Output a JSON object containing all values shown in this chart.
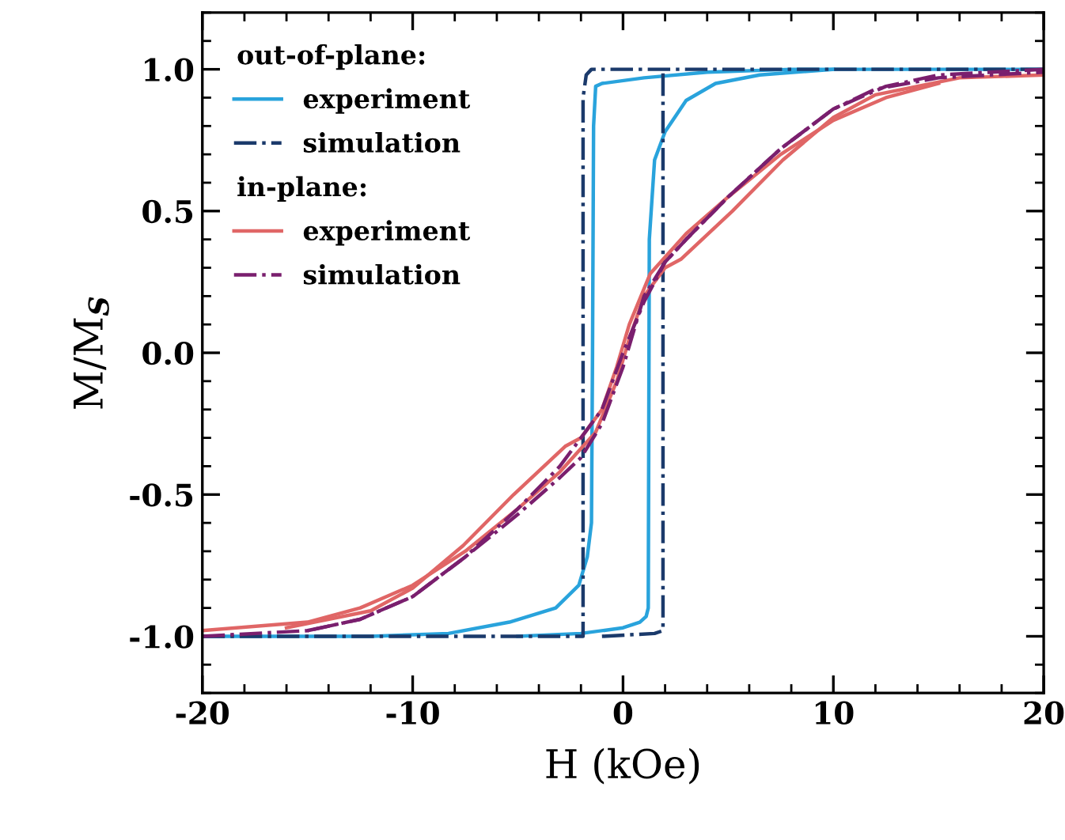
{
  "chart_data": {
    "type": "line",
    "xlabel": "H (kOe)",
    "ylabel": "M/M$_{S}$",
    "xlim": [
      -20,
      20
    ],
    "xticks": [
      -20,
      -10,
      0,
      10,
      20
    ],
    "ylim": [
      -1.2,
      1.2
    ],
    "yticks": [
      {
        "value": -1.0,
        "label": "-1.0"
      },
      {
        "value": -0.5,
        "label": "-0.5"
      },
      {
        "value": 0.0,
        "label": "0.0"
      },
      {
        "value": 0.5,
        "label": "0.5"
      },
      {
        "value": 1.0,
        "label": "1.0"
      }
    ],
    "annotations": [
      "out-of-plane:",
      "in-plane:"
    ],
    "legend": "top left",
    "grid": false,
    "marker": "none",
    "series": [
      {
        "name": "experiment",
        "color": "#29a3dc",
        "line_style": "solid",
        "x": [
          -20,
          -12,
          -8.3,
          -5.4,
          -3.2,
          -2.1,
          -1.7,
          -1.5,
          -1.45,
          -1.4,
          -1.3,
          -1.0,
          1,
          4,
          8,
          20
        ],
        "values": [
          -1.0,
          -1.0,
          -0.99,
          -0.95,
          -0.9,
          -0.82,
          -0.72,
          -0.6,
          0.0,
          0.8,
          0.94,
          0.95,
          0.97,
          0.99,
          1.0,
          1.0
        ]
      },
      {
        "color": "#29a3dc",
        "line_style": "solid",
        "x": [
          -5,
          -2,
          0,
          0.8,
          1.1,
          1.2,
          1.25,
          1.5,
          2.0,
          3.0,
          4.4,
          6.5,
          10
        ],
        "values": [
          -1.0,
          -0.99,
          -0.97,
          -0.95,
          -0.93,
          -0.9,
          0.4,
          0.68,
          0.78,
          0.89,
          0.95,
          0.98,
          1.0
        ]
      },
      {
        "name": "simulation",
        "color": "#1b3a6b",
        "line_style": "dashdot",
        "x": [
          -20,
          -1.9,
          -1.9,
          -1.75,
          -1.5,
          20
        ],
        "values": [
          -1.0,
          -1.0,
          0.9,
          0.98,
          1.0,
          1.0
        ]
      },
      {
        "color": "#1b3a6b",
        "line_style": "dashdot",
        "x": [
          -1.0,
          1.5,
          1.9,
          1.9
        ],
        "values": [
          -1.0,
          -0.99,
          -0.98,
          1.0
        ]
      },
      {
        "name": "experiment",
        "color": "#e06666",
        "line_style": "solid",
        "x": [
          -20,
          -15,
          -12.5,
          -10,
          -7.5,
          -5,
          -3,
          -1.3,
          -0.3,
          0.3,
          1,
          2,
          2.75,
          5.2,
          7.6,
          10,
          12,
          16,
          20
        ],
        "values": [
          -0.98,
          -0.95,
          -0.9,
          -0.82,
          -0.7,
          -0.55,
          -0.42,
          -0.28,
          -0.1,
          0.05,
          0.2,
          0.3,
          0.33,
          0.5,
          0.68,
          0.83,
          0.91,
          0.97,
          0.98
        ]
      },
      {
        "color": "#e06666",
        "line_style": "solid",
        "x": [
          -16,
          -12,
          -10,
          -7.6,
          -5.2,
          -2.75,
          -2,
          -1,
          -0.3,
          0.3,
          1.3,
          3,
          5,
          7.5,
          10,
          12.5,
          15
        ],
        "values": [
          -0.97,
          -0.91,
          -0.83,
          -0.68,
          -0.5,
          -0.33,
          -0.3,
          -0.2,
          -0.05,
          0.1,
          0.28,
          0.42,
          0.55,
          0.7,
          0.82,
          0.9,
          0.95
        ]
      },
      {
        "name": "simulation",
        "color": "#7a1f6e",
        "line_style": "dashdot",
        "x": [
          -20,
          -15,
          -12.5,
          -10,
          -7.5,
          -5,
          -3,
          -2,
          -1,
          0,
          1,
          2,
          3,
          5,
          7.5,
          10,
          12,
          15,
          20
        ],
        "values": [
          -1.0,
          -0.98,
          -0.94,
          -0.86,
          -0.72,
          -0.55,
          -0.4,
          -0.3,
          -0.2,
          0.0,
          0.18,
          0.32,
          0.4,
          0.55,
          0.72,
          0.86,
          0.93,
          0.97,
          0.99
        ]
      },
      {
        "color": "#7a1f6e",
        "line_style": "dashdot",
        "x": [
          -15,
          -12.5,
          -10,
          -7.5,
          -5,
          -3,
          -2,
          -1,
          0,
          1,
          2,
          3,
          5,
          7.5,
          10,
          12.5,
          15,
          20
        ],
        "values": [
          -0.98,
          -0.94,
          -0.86,
          -0.72,
          -0.57,
          -0.44,
          -0.37,
          -0.25,
          -0.05,
          0.2,
          0.32,
          0.4,
          0.55,
          0.72,
          0.86,
          0.94,
          0.98,
          1.0
        ]
      }
    ]
  }
}
